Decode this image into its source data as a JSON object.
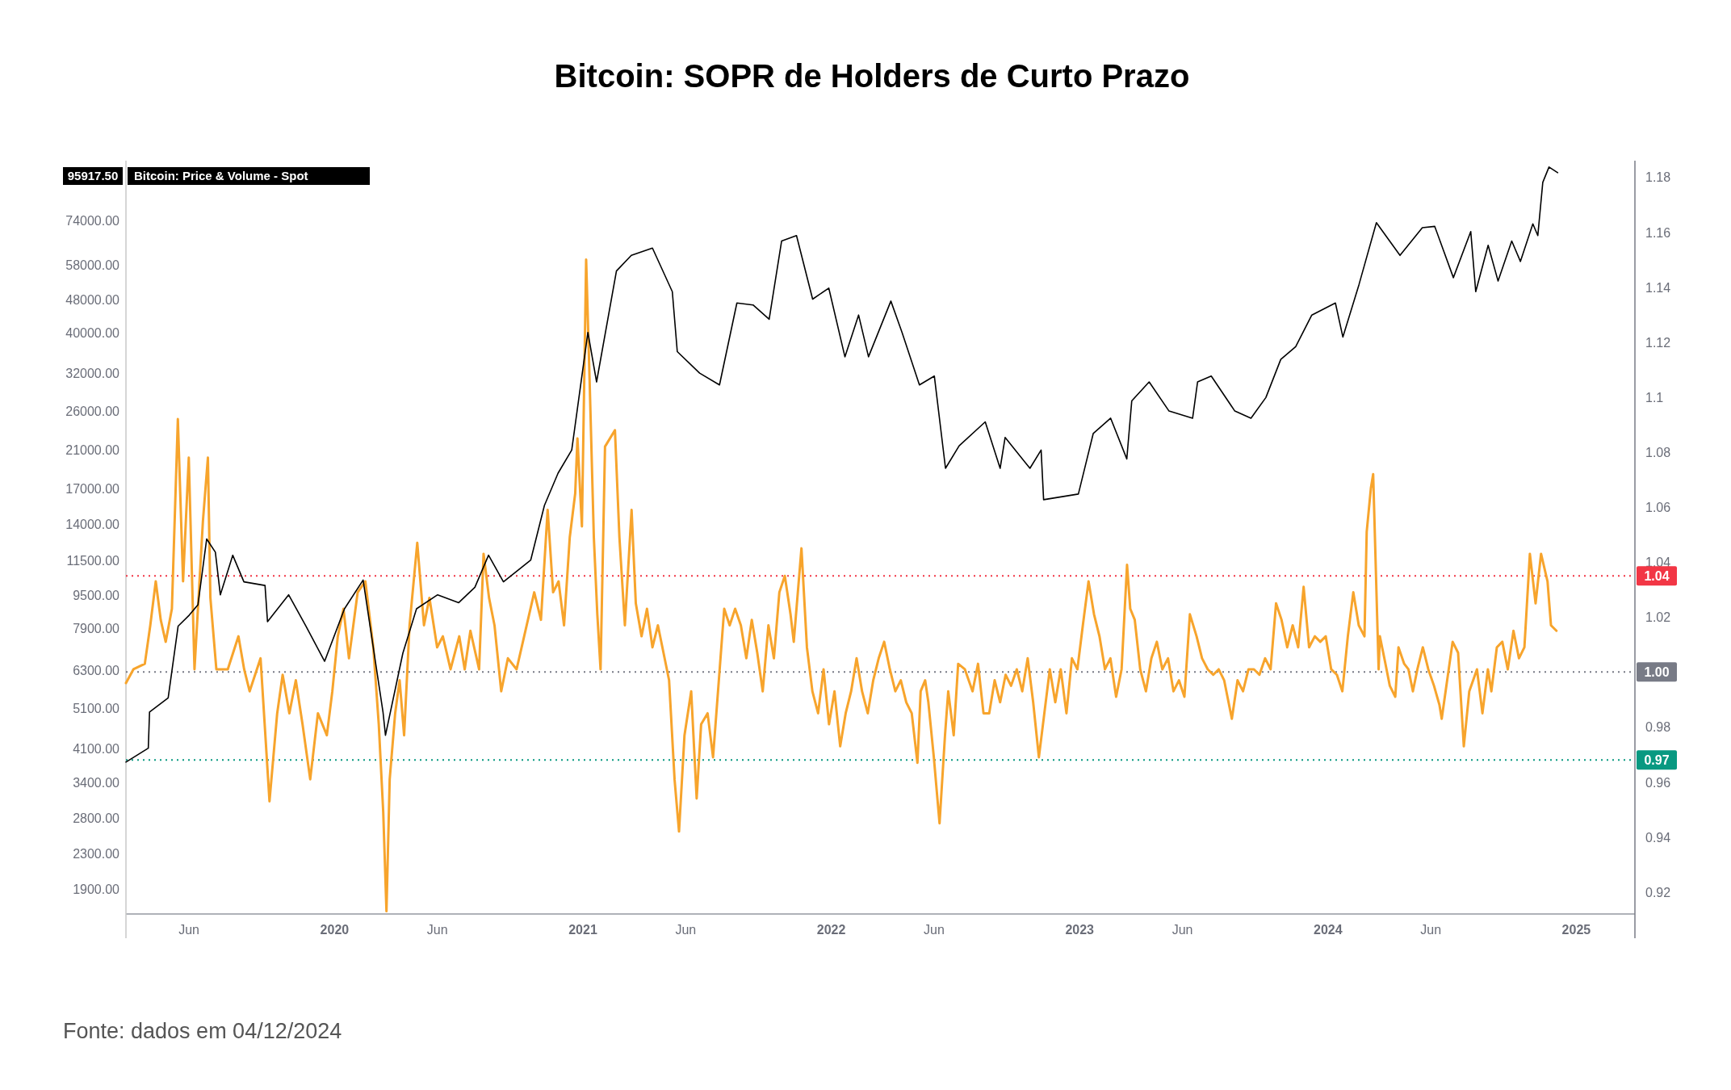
{
  "chart_data": {
    "type": "line",
    "title": "Bitcoin: SOPR de Holders de Curto Prazo",
    "annotations": [
      "95917.50",
      "Fonte: dados em 04/12/2024"
    ],
    "xlim": [
      2019.16,
      2025.236
    ],
    "xticks": [
      {
        "value": 2019.414,
        "label": "Jun"
      },
      {
        "value": 2020,
        "label": "2020"
      },
      {
        "value": 2020.414,
        "label": "Jun"
      },
      {
        "value": 2021,
        "label": "2021"
      },
      {
        "value": 2021.414,
        "label": "Jun"
      },
      {
        "value": 2022,
        "label": "2022"
      },
      {
        "value": 2022.414,
        "label": "Jun"
      },
      {
        "value": 2023,
        "label": "2023"
      },
      {
        "value": 2023.414,
        "label": "Jun"
      },
      {
        "value": 2024,
        "label": "2024"
      },
      {
        "value": 2024.414,
        "label": "Jun"
      },
      {
        "value": 2025,
        "label": "2025"
      }
    ],
    "log": "y",
    "ylim": [
      1653,
      102500
    ],
    "yticks": [
      {
        "value": 1900,
        "label": "1900.00"
      },
      {
        "value": 2300,
        "label": "2300.00"
      },
      {
        "value": 2800,
        "label": "2800.00"
      },
      {
        "value": 3400,
        "label": "3400.00"
      },
      {
        "value": 4100,
        "label": "4100.00"
      },
      {
        "value": 5100,
        "label": "5100.00"
      },
      {
        "value": 6300,
        "label": "6300.00"
      },
      {
        "value": 7900,
        "label": "7900.00"
      },
      {
        "value": 9500,
        "label": "9500.00"
      },
      {
        "value": 11500,
        "label": "11500.00"
      },
      {
        "value": 14000,
        "label": "14000.00"
      },
      {
        "value": 17000,
        "label": "17000.00"
      },
      {
        "value": 21000,
        "label": "21000.00"
      },
      {
        "value": 26000,
        "label": "26000.00"
      },
      {
        "value": 32000,
        "label": "32000.00"
      },
      {
        "value": 40000,
        "label": "40000.00"
      },
      {
        "value": 48000,
        "label": "48000.00"
      },
      {
        "value": 58000,
        "label": "58000.00"
      },
      {
        "value": 74000,
        "label": "74000.00"
      }
    ],
    "y2lim": [
      0.912,
      1.186
    ],
    "y2ticks": [
      0.92,
      0.94,
      0.96,
      0.98,
      1.02,
      1.04,
      1.06,
      1.08,
      1.1,
      1.12,
      1.14,
      1.16,
      1.18
    ],
    "legend": "top left",
    "grid": false,
    "ref_lines": [
      {
        "axis": "y2",
        "value": 1.035,
        "label": "1.04",
        "color": "#f23645",
        "line_style": "dotted"
      },
      {
        "axis": "y2",
        "value": 1.0,
        "label": "1.00",
        "color": "#787b86",
        "line_style": "dotted"
      },
      {
        "axis": "y2",
        "value": 0.968,
        "label": "0.97",
        "color": "#089981",
        "line_style": "dotted"
      }
    ],
    "series": [
      {
        "name": "Bitcoin: Price & Volume - Spot",
        "color": "#000000",
        "x": [
          2019.16,
          2019.25,
          2019.255,
          2019.33,
          2019.37,
          2019.415,
          2019.45,
          2019.485,
          2019.52,
          2019.54,
          2019.59,
          2019.635,
          2019.72,
          2019.73,
          2019.815,
          2019.885,
          2019.96,
          2020.04,
          2020.115,
          2020.195,
          2020.205,
          2020.275,
          2020.33,
          2020.415,
          2020.5,
          2020.565,
          2020.62,
          2020.68,
          2020.79,
          2020.845,
          2020.9,
          2020.955,
          2021.02,
          2021.055,
          2021.135,
          2021.195,
          2021.28,
          2021.36,
          2021.38,
          2021.47,
          2021.55,
          2021.62,
          2021.685,
          2021.75,
          2021.8,
          2021.86,
          2021.925,
          2021.99,
          2022.055,
          2022.11,
          2022.15,
          2022.24,
          2022.285,
          2022.355,
          2022.415,
          2022.46,
          2022.515,
          2022.62,
          2022.68,
          2022.7,
          2022.8,
          2022.845,
          2022.855,
          2022.995,
          2023.055,
          2023.125,
          2023.19,
          2023.21,
          2023.28,
          2023.36,
          2023.455,
          2023.475,
          2023.53,
          2023.625,
          2023.69,
          2023.75,
          2023.81,
          2023.87,
          2023.935,
          2024.03,
          2024.06,
          2024.125,
          2024.195,
          2024.29,
          2024.38,
          2024.43,
          2024.505,
          2024.575,
          2024.595,
          2024.645,
          2024.685,
          2024.74,
          2024.775,
          2024.825,
          2024.845,
          2024.865,
          2024.89,
          2024.925
        ],
        "values": [
          3800,
          4100,
          5000,
          5400,
          8000,
          8500,
          9000,
          12900,
          12000,
          9500,
          11800,
          10200,
          10000,
          8200,
          9500,
          8000,
          6600,
          8800,
          10300,
          5000,
          4400,
          6900,
          8800,
          9500,
          9100,
          9900,
          11800,
          10200,
          11500,
          15500,
          18500,
          21000,
          40000,
          30500,
          56000,
          61000,
          63500,
          50000,
          36000,
          32000,
          30000,
          47000,
          46500,
          43000,
          66000,
          68000,
          48000,
          51000,
          35000,
          44000,
          35000,
          47500,
          40000,
          30000,
          31500,
          19000,
          21500,
          24500,
          19000,
          22500,
          19000,
          21000,
          16000,
          16500,
          23000,
          25000,
          20000,
          27500,
          30500,
          26000,
          25000,
          30500,
          31500,
          26000,
          25000,
          28000,
          34500,
          37000,
          44000,
          47000,
          39000,
          52000,
          73000,
          61000,
          71000,
          71500,
          54000,
          69500,
          50000,
          64500,
          53000,
          66000,
          59000,
          72500,
          68000,
          91000,
          99000,
          96000
        ]
      },
      {
        "color": "#f7a42c",
        "axis": "y2",
        "x": [
          2019.16,
          2019.19,
          2019.236,
          2019.258,
          2019.28,
          2019.3,
          2019.32,
          2019.345,
          2019.369,
          2019.39,
          2019.413,
          2019.436,
          2019.47,
          2019.49,
          2019.5,
          2019.524,
          2019.57,
          2019.613,
          2019.636,
          2019.658,
          2019.702,
          2019.738,
          2019.769,
          2019.791,
          2019.818,
          2019.844,
          2019.871,
          2019.902,
          2019.933,
          2019.969,
          2019.991,
          2020.013,
          2020.036,
          2020.058,
          2020.093,
          2020.124,
          2020.156,
          2020.178,
          2020.196,
          2020.209,
          2020.222,
          2020.244,
          2020.262,
          2020.28,
          2020.302,
          2020.333,
          2020.36,
          2020.382,
          2020.413,
          2020.436,
          2020.467,
          2020.502,
          2020.524,
          2020.547,
          2020.582,
          2020.6,
          2020.622,
          2020.644,
          2020.671,
          2020.698,
          2020.733,
          2020.804,
          2020.831,
          2020.858,
          2020.88,
          2020.902,
          2020.924,
          2020.947,
          2020.969,
          2020.978,
          2020.996,
          2021.013,
          2021.027,
          2021.044,
          2021.058,
          2021.071,
          2021.089,
          2021.129,
          2021.147,
          2021.169,
          2021.196,
          2021.213,
          2021.236,
          2021.258,
          2021.28,
          2021.302,
          2021.347,
          2021.369,
          2021.387,
          2021.409,
          2021.436,
          2021.458,
          2021.476,
          2021.502,
          2021.524,
          2021.569,
          2021.591,
          2021.613,
          2021.636,
          2021.658,
          2021.68,
          2021.702,
          2021.724,
          2021.747,
          2021.769,
          2021.791,
          2021.813,
          2021.836,
          2021.849,
          2021.88,
          2021.902,
          2021.924,
          2021.947,
          2021.969,
          2021.991,
          2022.013,
          2022.036,
          2022.058,
          2022.08,
          2022.102,
          2022.124,
          2022.147,
          2022.169,
          2022.191,
          2022.213,
          2022.236,
          2022.258,
          2022.28,
          2022.302,
          2022.324,
          2022.347,
          2022.36,
          2022.378,
          2022.391,
          2022.413,
          2022.436,
          2022.458,
          2022.471,
          2022.493,
          2022.511,
          2022.538,
          2022.569,
          2022.591,
          2022.613,
          2022.636,
          2022.658,
          2022.68,
          2022.702,
          2022.724,
          2022.747,
          2022.769,
          2022.791,
          2022.813,
          2022.836,
          2022.858,
          2022.88,
          2022.902,
          2022.924,
          2022.947,
          2022.969,
          2022.991,
          2023.013,
          2023.036,
          2023.058,
          2023.08,
          2023.102,
          2023.124,
          2023.147,
          2023.169,
          2023.191,
          2023.204,
          2023.222,
          2023.244,
          2023.267,
          2023.289,
          2023.311,
          2023.333,
          2023.356,
          2023.378,
          2023.4,
          2023.422,
          2023.444,
          2023.471,
          2023.493,
          2023.516,
          2023.538,
          2023.56,
          2023.582,
          2023.613,
          2023.636,
          2023.658,
          2023.68,
          2023.702,
          2023.724,
          2023.747,
          2023.769,
          2023.791,
          2023.813,
          2023.836,
          2023.858,
          2023.88,
          2023.902,
          2023.924,
          2023.947,
          2023.969,
          2023.991,
          2024.013,
          2024.036,
          2024.058,
          2024.08,
          2024.102,
          2024.124,
          2024.147,
          2024.156,
          2024.173,
          2024.182,
          2024.191,
          2024.204,
          2024.209,
          2024.227,
          2024.249,
          2024.271,
          2024.284,
          2024.307,
          2024.324,
          2024.342,
          2024.36,
          2024.382,
          2024.404,
          2024.427,
          2024.449,
          2024.458,
          2024.48,
          2024.502,
          2024.524,
          2024.547,
          2024.569,
          2024.6,
          2024.622,
          2024.644,
          2024.658,
          2024.68,
          2024.702,
          2024.724,
          2024.747,
          2024.769,
          2024.791,
          2024.813,
          2024.836,
          2024.858,
          2024.884,
          2024.898,
          2024.92
        ],
        "values": [
          0.996,
          1.001,
          1.003,
          1.017,
          1.033,
          1.019,
          1.011,
          1.023,
          1.092,
          1.033,
          1.078,
          1.001,
          1.055,
          1.078,
          1.027,
          1.001,
          1.001,
          1.013,
          1.001,
          0.993,
          1.005,
          0.953,
          0.985,
          0.999,
          0.985,
          0.997,
          0.981,
          0.961,
          0.985,
          0.977,
          0.993,
          1.013,
          1.023,
          1.005,
          1.029,
          1.033,
          1.009,
          0.981,
          0.949,
          0.913,
          0.961,
          0.985,
          0.997,
          0.977,
          1.017,
          1.047,
          1.017,
          1.027,
          1.009,
          1.013,
          1.001,
          1.013,
          1.001,
          1.015,
          1.001,
          1.043,
          1.027,
          1.017,
          0.993,
          1.005,
          1.001,
          1.029,
          1.019,
          1.059,
          1.029,
          1.033,
          1.017,
          1.049,
          1.065,
          1.085,
          1.053,
          1.15,
          1.106,
          1.049,
          1.021,
          1.001,
          1.082,
          1.088,
          1.049,
          1.017,
          1.059,
          1.025,
          1.013,
          1.023,
          1.009,
          1.017,
          0.997,
          0.961,
          0.942,
          0.977,
          0.993,
          0.954,
          0.981,
          0.985,
          0.969,
          1.023,
          1.017,
          1.023,
          1.017,
          1.005,
          1.019,
          1.007,
          0.993,
          1.017,
          1.005,
          1.029,
          1.035,
          1.021,
          1.011,
          1.045,
          1.009,
          0.993,
          0.985,
          1.001,
          0.981,
          0.993,
          0.973,
          0.985,
          0.993,
          1.005,
          0.993,
          0.985,
          0.997,
          1.005,
          1.011,
          1.001,
          0.993,
          0.997,
          0.989,
          0.985,
          0.967,
          0.993,
          0.997,
          0.989,
          0.969,
          0.945,
          0.977,
          0.993,
          0.977,
          1.003,
          1.001,
          0.993,
          1.003,
          0.985,
          0.985,
          0.997,
          0.989,
          0.999,
          0.995,
          1.001,
          0.993,
          1.005,
          0.989,
          0.969,
          0.985,
          1.001,
          0.989,
          1.001,
          0.985,
          1.005,
          1.001,
          1.017,
          1.033,
          1.021,
          1.013,
          1.001,
          1.005,
          0.991,
          1.001,
          1.039,
          1.023,
          1.019,
          1.001,
          0.993,
          1.005,
          1.011,
          1.001,
          1.005,
          0.993,
          0.997,
          0.991,
          1.021,
          1.013,
          1.005,
          1.001,
          0.999,
          1.001,
          0.997,
          0.983,
          0.997,
          0.993,
          1.001,
          1.001,
          0.999,
          1.005,
          1.001,
          1.025,
          1.019,
          1.009,
          1.017,
          1.009,
          1.031,
          1.009,
          1.013,
          1.011,
          1.013,
          1.001,
          0.999,
          0.993,
          1.013,
          1.029,
          1.017,
          1.013,
          1.051,
          1.067,
          1.072,
          1.043,
          1.001,
          1.013,
          1.005,
          0.995,
          0.991,
          1.009,
          1.003,
          1.001,
          0.993,
          1.001,
          1.009,
          1.001,
          0.995,
          0.988,
          0.983,
          0.997,
          1.011,
          1.007,
          0.973,
          0.993,
          1.001,
          0.985,
          1.001,
          0.993,
          1.009,
          1.011,
          1.001,
          1.015,
          1.005,
          1.009,
          1.043,
          1.025,
          1.043,
          1.033,
          1.017,
          1.015
        ]
      }
    ]
  }
}
